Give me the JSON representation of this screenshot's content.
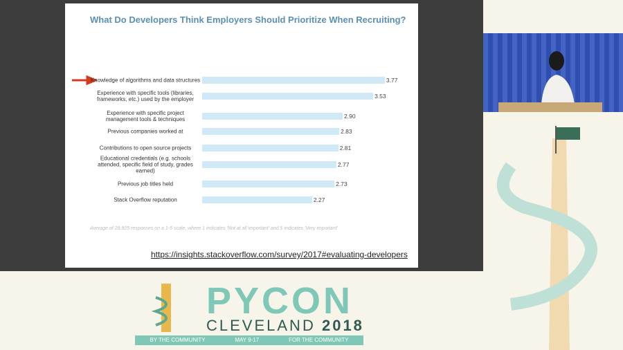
{
  "chart_data": {
    "type": "bar",
    "orientation": "horizontal",
    "title": "What Do Developers Think Employers Should Prioritize When Recruiting?",
    "categories": [
      "Knowledge of algorithms and data structures",
      "Experience with specific tools (libraries, frameworks, etc.) used by the employer",
      "Experience with specific project management tools & techniques",
      "Previous companies worked at",
      "Contributions to open source projects",
      "Educational credentials (e.g. schools attended, specific field of study, grades earned)",
      "Previous job titles held",
      "Stack Overflow reputation"
    ],
    "values": [
      3.77,
      3.53,
      2.9,
      2.83,
      2.81,
      2.77,
      2.73,
      2.27
    ],
    "value_labels": [
      "3.77",
      "3.53",
      "2.90",
      "2.83",
      "2.81",
      "2.77",
      "2.73",
      "2.27"
    ],
    "color": "#cfe9f6",
    "xlim": [
      0,
      4
    ],
    "note": "Average of 28,925 responses on a 1-5 scale, where 1 indicates 'Not at all important' and 5 indicates 'Very important'"
  },
  "slide": {
    "link": "https://insights.stackoverflow.com/survey/2017#evaluating-developers"
  },
  "banner": {
    "name": "PYCON",
    "city": "CLEVELAND",
    "year": "2018",
    "left_ribbon": "BY THE COMMUNITY",
    "dates": "MAY 9-17",
    "right_ribbon": "FOR THE COMMUNITY"
  }
}
